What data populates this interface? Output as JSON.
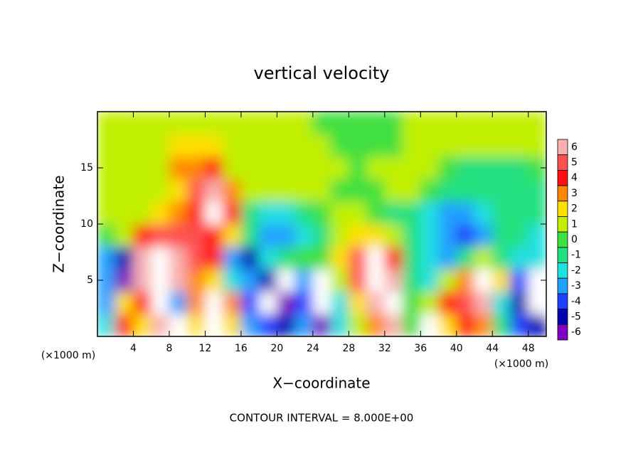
{
  "chart_data": {
    "type": "heatmap",
    "title": "vertical velocity",
    "x_label": "X−coordinate",
    "y_label": "Z−coordinate",
    "x_unit": "(×1000 m)",
    "footer": "CONTOUR INTERVAL = 8.000E+00",
    "xlim": [
      0,
      50
    ],
    "ylim": [
      0,
      20
    ],
    "xticks": [
      4,
      8,
      12,
      16,
      20,
      24,
      28,
      32,
      36,
      40,
      44,
      48
    ],
    "yticks": [
      5,
      10,
      15
    ],
    "x": [
      1,
      3,
      5,
      7,
      9,
      11,
      13,
      15,
      17,
      19,
      21,
      23,
      25,
      27,
      29,
      31,
      33,
      35,
      37,
      39,
      41,
      43,
      45,
      47,
      49
    ],
    "y": [
      1,
      3,
      5,
      7,
      9,
      11,
      13,
      15,
      17,
      19
    ],
    "z": [
      [
        -2,
        4,
        2,
        6,
        -7,
        2,
        7,
        2,
        -3,
        -4,
        -5,
        -3,
        -6,
        -2,
        1,
        3,
        6,
        0,
        7,
        2,
        4,
        3,
        -1,
        -4,
        -5
      ],
      [
        -3,
        2,
        4,
        8,
        -3,
        3,
        8,
        3,
        -4,
        -7,
        -6,
        -4,
        -8,
        -2,
        2,
        6,
        9,
        0,
        1,
        4,
        5,
        6,
        -2,
        -5,
        -7
      ],
      [
        -3,
        -6,
        6,
        9,
        6,
        3,
        2,
        -2,
        -3,
        -5,
        -8,
        -3,
        -7,
        1,
        5,
        9,
        6,
        -1,
        -2,
        1,
        3,
        7,
        2,
        -4,
        -8
      ],
      [
        -3,
        -5,
        6,
        8,
        6,
        5,
        4,
        -3,
        -5,
        -2,
        -1,
        0,
        0,
        2,
        5,
        7,
        4,
        -1,
        -2,
        -3,
        -1,
        1,
        -1,
        -2,
        -2
      ],
      [
        0,
        1,
        4,
        5,
        5,
        5,
        4,
        2,
        -1,
        -3,
        -3,
        -2,
        -1,
        1,
        2,
        2,
        1,
        -1,
        -2,
        -3,
        -4,
        -3,
        -1,
        -1,
        -2
      ],
      [
        0.5,
        0.5,
        1,
        2,
        3,
        4,
        7,
        4,
        -1,
        -2,
        -2,
        -1,
        0,
        0.5,
        0.5,
        0,
        -1,
        -1,
        -2,
        -3,
        -3,
        -2,
        -1,
        -1,
        -1
      ],
      [
        0.5,
        0.5,
        0.5,
        1,
        2,
        5,
        6,
        3,
        0.5,
        0.5,
        0.5,
        0.5,
        0.5,
        0,
        0,
        0,
        0.5,
        0.5,
        0,
        -1,
        -1,
        -1,
        -1,
        -1,
        -1
      ],
      [
        0.5,
        0.5,
        0.5,
        1,
        3,
        3,
        4,
        1,
        0.5,
        0.5,
        0.5,
        0.5,
        0.5,
        0.5,
        0,
        0.5,
        0.5,
        0.5,
        0.5,
        0,
        -1,
        -1,
        -1,
        -1,
        -0.5
      ],
      [
        0.5,
        0.5,
        0.5,
        1,
        2,
        2,
        1.5,
        0.5,
        0.5,
        0.5,
        0.5,
        0.5,
        0.5,
        0,
        0,
        0,
        0,
        0.5,
        0.5,
        0.5,
        0.5,
        0.5,
        0.5,
        0.5,
        0.5
      ],
      [
        0.5,
        0.5,
        0.5,
        0.5,
        0.5,
        0.5,
        0.5,
        0.5,
        0.5,
        0.5,
        0.5,
        0.5,
        0,
        0,
        0,
        0,
        0,
        0.5,
        0.5,
        0.5,
        0.5,
        0.5,
        0.5,
        0.5,
        0.5
      ]
    ],
    "colorbar": {
      "ticks": [
        6,
        5,
        4,
        3,
        2,
        1,
        0,
        -1,
        -2,
        -3,
        -4,
        -5,
        -6
      ],
      "colors": [
        "#f8b0b0",
        "#ff5050",
        "#ff1010",
        "#ff8800",
        "#ffe000",
        "#c0f000",
        "#40e040",
        "#20e080",
        "#20e0e0",
        "#20a0ff",
        "#2040ff",
        "#0000b0",
        "#8000c0"
      ],
      "beyond": "#ffffff"
    }
  }
}
